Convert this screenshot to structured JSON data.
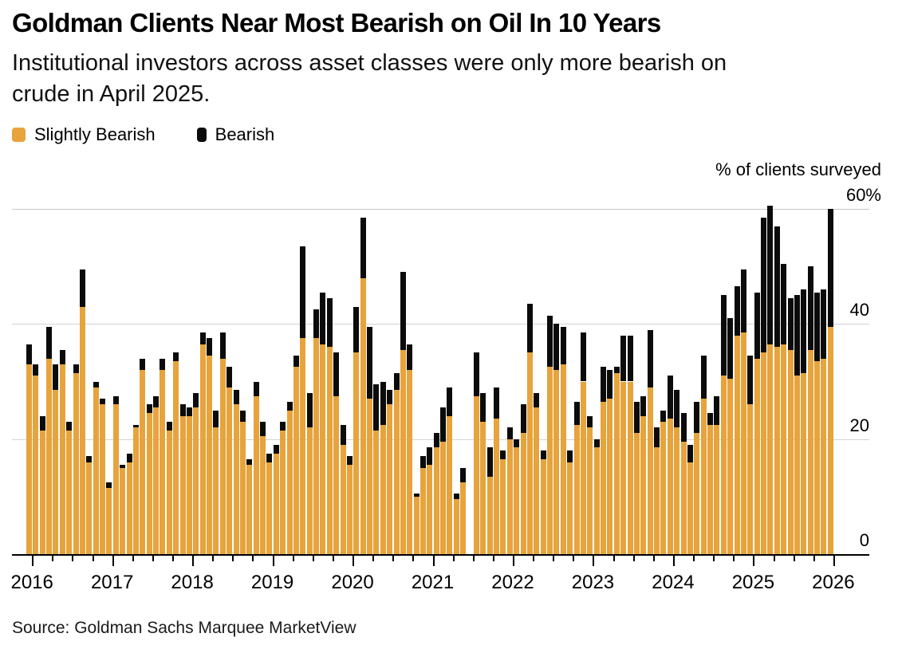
{
  "header": {
    "title": "Goldman Clients Near Most Bearish on Oil In 10 Years",
    "subtitle": "Institutional investors across asset classes were only more bearish on crude in April 2025.",
    "subtitle_lines": {
      "0": "Institutional investors across asset classes were only more bearish on",
      "1": "crude in April 2025."
    }
  },
  "legend": {
    "items": [
      {
        "label": "Slightly Bearish",
        "color": "#E7A33C"
      },
      {
        "label": "Bearish",
        "color": "#0b0b0b"
      }
    ]
  },
  "y_axis": {
    "note": "% of clients surveyed"
  },
  "source": "Source: Goldman Sachs Marquee MarketView",
  "chart_data": {
    "type": "bar",
    "stacked": true,
    "unit": "% of clients surveyed",
    "title": "Goldman Clients Near Most Bearish on Oil In 10 Years",
    "grid": "horizontal",
    "legend_position": "top-left",
    "ylim": [
      0,
      60
    ],
    "yticks": [
      0,
      20,
      40,
      60
    ],
    "ytick_labels": [
      "0",
      "20",
      "40",
      "60%"
    ],
    "xticks_years": [
      "2016",
      "2017",
      "2018",
      "2019",
      "2020",
      "2021",
      "2022",
      "2023",
      "2024",
      "2025",
      "2026"
    ],
    "missing_months": [
      "2021-07"
    ],
    "x": [
      "2016-01",
      "2016-02",
      "2016-03",
      "2016-04",
      "2016-05",
      "2016-06",
      "2016-07",
      "2016-08",
      "2016-09",
      "2016-10",
      "2016-11",
      "2016-12",
      "2017-01",
      "2017-02",
      "2017-03",
      "2017-04",
      "2017-05",
      "2017-06",
      "2017-07",
      "2017-08",
      "2017-09",
      "2017-10",
      "2017-11",
      "2017-12",
      "2018-01",
      "2018-02",
      "2018-03",
      "2018-04",
      "2018-05",
      "2018-06",
      "2018-07",
      "2018-08",
      "2018-09",
      "2018-10",
      "2018-11",
      "2018-12",
      "2019-01",
      "2019-02",
      "2019-03",
      "2019-04",
      "2019-05",
      "2019-06",
      "2019-07",
      "2019-08",
      "2019-09",
      "2019-10",
      "2019-11",
      "2019-12",
      "2020-01",
      "2020-02",
      "2020-03",
      "2020-04",
      "2020-05",
      "2020-06",
      "2020-07",
      "2020-08",
      "2020-09",
      "2020-10",
      "2020-11",
      "2020-12",
      "2021-01",
      "2021-02",
      "2021-03",
      "2021-04",
      "2021-05",
      "2021-06",
      "2021-07",
      "2021-08",
      "2021-09",
      "2021-10",
      "2021-11",
      "2021-12",
      "2022-01",
      "2022-02",
      "2022-03",
      "2022-04",
      "2022-05",
      "2022-06",
      "2022-07",
      "2022-08",
      "2022-09",
      "2022-10",
      "2022-11",
      "2022-12",
      "2023-01",
      "2023-02",
      "2023-03",
      "2023-04",
      "2023-05",
      "2023-06",
      "2023-07",
      "2023-08",
      "2023-09",
      "2023-10",
      "2023-11",
      "2023-12",
      "2024-01",
      "2024-02",
      "2024-03",
      "2024-04",
      "2024-05",
      "2024-06",
      "2024-07",
      "2024-08",
      "2024-09",
      "2024-10",
      "2024-11",
      "2024-12",
      "2025-01",
      "2025-02",
      "2025-03",
      "2025-04",
      "2025-05",
      "2025-06",
      "2025-07",
      "2025-08",
      "2025-09",
      "2025-10",
      "2025-11",
      "2025-12",
      "2026-01"
    ],
    "series": [
      {
        "name": "Slightly Bearish",
        "color": "#E7A33C",
        "values": [
          33,
          31,
          21.5,
          34,
          28.5,
          33,
          21.5,
          31.5,
          43,
          16,
          29,
          26,
          11.5,
          26,
          15,
          16,
          22,
          32,
          24.5,
          25.5,
          32,
          21.5,
          33.5,
          24,
          24,
          25.5,
          36.5,
          34.5,
          22,
          34,
          29,
          26,
          23,
          15.5,
          27.5,
          20.5,
          16,
          17.5,
          21.5,
          25,
          32.5,
          37.5,
          22,
          37.5,
          36.5,
          36,
          27.5,
          19,
          15.5,
          35,
          48,
          27,
          21.5,
          22.5,
          26,
          28.5,
          35.5,
          32,
          10,
          15,
          15.5,
          18.5,
          19.5,
          24,
          9.5,
          12.5,
          null,
          27.5,
          23,
          13.5,
          23.5,
          16.5,
          20,
          18.5,
          21,
          35,
          25.5,
          16.5,
          32.5,
          32,
          33,
          16,
          22.5,
          30,
          22,
          18.5,
          26.5,
          27,
          31.5,
          30,
          30,
          21,
          24,
          29,
          18.5,
          23,
          23.5,
          22,
          19.5,
          16,
          21,
          27,
          22.5,
          22.5,
          31,
          30.5,
          38,
          38.5,
          26,
          34,
          35,
          36.5,
          36,
          36.5,
          35.5,
          31,
          31.5,
          35.5,
          33.5,
          34,
          39.5
        ]
      },
      {
        "name": "Bearish",
        "color": "#0b0b0b",
        "values": [
          3.5,
          2,
          2.5,
          5.5,
          4.5,
          2.5,
          1.5,
          1.5,
          6.5,
          1,
          1,
          1,
          1,
          1.5,
          0.5,
          1.5,
          0.5,
          2,
          1.5,
          2,
          2,
          1.5,
          1.5,
          2,
          1.5,
          2.5,
          2,
          3,
          3,
          4.5,
          3.5,
          2.5,
          2,
          1,
          2.5,
          2.5,
          1.5,
          1.5,
          1.5,
          1.5,
          2,
          16,
          6,
          5,
          9,
          8.5,
          7.5,
          3.5,
          1.5,
          8,
          10.5,
          12.5,
          8,
          7.5,
          2.5,
          3,
          13.5,
          4.5,
          0.5,
          2,
          3,
          2.5,
          6,
          5,
          1,
          2.5,
          null,
          7.5,
          5,
          5,
          5.5,
          1.5,
          2,
          1.5,
          5,
          8.5,
          2.5,
          1.5,
          9,
          8,
          6.5,
          2,
          4,
          8.5,
          2,
          1.5,
          6,
          5,
          1,
          8,
          8,
          5.5,
          3.5,
          10,
          3.5,
          2,
          7.5,
          6.5,
          5,
          3,
          5.5,
          7.5,
          2,
          5,
          14,
          10.5,
          8.5,
          11,
          8.5,
          11.5,
          23.5,
          24,
          21,
          14,
          9,
          14,
          14.5,
          14.5,
          12,
          12,
          20.5
        ]
      }
    ]
  }
}
